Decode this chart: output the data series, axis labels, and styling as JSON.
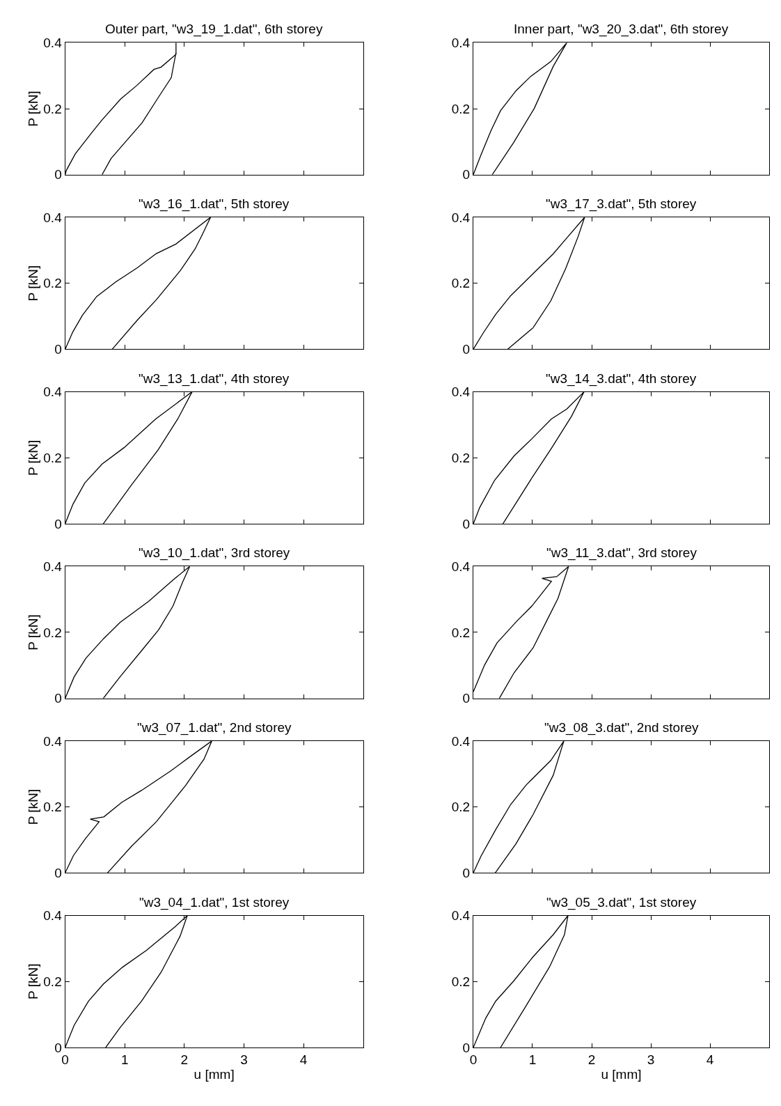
{
  "chart_data": [
    {
      "type": "line",
      "title": "Outer part, \"w3_19_1.dat\", 6th storey",
      "ylabel": "P [kN]",
      "color": "#000000",
      "xlim": [
        0,
        5
      ],
      "ylim": [
        0,
        0.4
      ],
      "xticks": [
        0,
        1,
        2,
        3,
        4
      ],
      "yticks": [
        0,
        0.2,
        0.4
      ],
      "tick_labels": "y",
      "x": [
        0,
        0.02,
        0.17,
        0.45,
        0.61,
        0.93,
        1.2,
        1.49,
        1.61,
        1.86,
        1.86,
        1.86,
        1.78,
        1.57,
        1.29,
        1.01,
        0.77,
        0.62
      ],
      "values": [
        0,
        0.013,
        0.063,
        0.128,
        0.164,
        0.229,
        0.27,
        0.319,
        0.326,
        0.365,
        0.4,
        0.37,
        0.294,
        0.236,
        0.157,
        0.099,
        0.049,
        0
      ]
    },
    {
      "type": "line",
      "title": "Inner part, \"w3_20_3.dat\", 6th storey",
      "color": "#000000",
      "xlim": [
        0,
        5
      ],
      "ylim": [
        0,
        0.4
      ],
      "xticks": [
        0,
        1,
        2,
        3,
        4
      ],
      "yticks": [
        0,
        0.2,
        0.4
      ],
      "tick_labels": "y",
      "x": [
        0,
        0.13,
        0.3,
        0.46,
        0.72,
        0.97,
        1.31,
        1.58,
        1.35,
        1.03,
        0.68,
        0.32
      ],
      "values": [
        0,
        0.06,
        0.134,
        0.194,
        0.254,
        0.298,
        0.343,
        0.4,
        0.328,
        0.201,
        0.097,
        0
      ]
    },
    {
      "type": "line",
      "title": "\"w3_16_1.dat\", 5th storey",
      "ylabel": "P [kN]",
      "color": "#000000",
      "xlim": [
        0,
        5
      ],
      "ylim": [
        0,
        0.4
      ],
      "xticks": [
        0,
        1,
        2,
        3,
        4
      ],
      "yticks": [
        0,
        0.2,
        0.4
      ],
      "tick_labels": "y",
      "x": [
        0,
        0.13,
        0.29,
        0.53,
        0.85,
        1.21,
        1.53,
        1.86,
        2.44,
        2.3,
        2.18,
        1.94,
        1.53,
        1.21,
        0.79
      ],
      "values": [
        0,
        0.053,
        0.103,
        0.16,
        0.204,
        0.247,
        0.29,
        0.319,
        0.4,
        0.347,
        0.304,
        0.24,
        0.15,
        0.088,
        0
      ]
    },
    {
      "type": "line",
      "title": "\"w3_17_3.dat\", 5th storey",
      "color": "#000000",
      "xlim": [
        0,
        5
      ],
      "ylim": [
        0,
        0.4
      ],
      "xticks": [
        0,
        1,
        2,
        3,
        4
      ],
      "yticks": [
        0,
        0.2,
        0.4
      ],
      "tick_labels": "y",
      "x": [
        0,
        0.17,
        0.38,
        0.63,
        0.97,
        1.35,
        1.56,
        1.88,
        1.77,
        1.56,
        1.31,
        1.01,
        0.58
      ],
      "values": [
        0,
        0.05,
        0.106,
        0.162,
        0.222,
        0.289,
        0.333,
        0.4,
        0.341,
        0.244,
        0.147,
        0.065,
        0
      ]
    },
    {
      "type": "line",
      "title": "\"w3_13_1.dat\", 4th storey",
      "ylabel": "P [kN]",
      "color": "#000000",
      "xlim": [
        0,
        5
      ],
      "ylim": [
        0,
        0.4
      ],
      "xticks": [
        0,
        1,
        2,
        3,
        4
      ],
      "yticks": [
        0,
        0.2,
        0.4
      ],
      "tick_labels": "y",
      "x": [
        0,
        0.13,
        0.33,
        0.62,
        0.99,
        1.52,
        2.13,
        1.89,
        1.56,
        1.11,
        0.64
      ],
      "values": [
        0,
        0.059,
        0.124,
        0.181,
        0.231,
        0.318,
        0.4,
        0.318,
        0.224,
        0.117,
        0
      ]
    },
    {
      "type": "line",
      "title": "\"w3_14_3.dat\", 4th storey",
      "color": "#000000",
      "xlim": [
        0,
        5
      ],
      "ylim": [
        0,
        0.4
      ],
      "xticks": [
        0,
        1,
        2,
        3,
        4
      ],
      "yticks": [
        0,
        0.2,
        0.4
      ],
      "tick_labels": "y",
      "x": [
        0,
        0.11,
        0.36,
        0.69,
        0.99,
        1.32,
        1.58,
        1.87,
        1.66,
        1.32,
        0.99,
        0.5
      ],
      "values": [
        0,
        0.05,
        0.132,
        0.206,
        0.258,
        0.318,
        0.348,
        0.4,
        0.326,
        0.229,
        0.139,
        0
      ]
    },
    {
      "type": "line",
      "title": "\"w3_10_1.dat\", 3rd storey",
      "ylabel": "P [kN]",
      "color": "#000000",
      "xlim": [
        0,
        5
      ],
      "ylim": [
        0,
        0.4
      ],
      "xticks": [
        0,
        1,
        2,
        3,
        4
      ],
      "yticks": [
        0,
        0.2,
        0.4
      ],
      "tick_labels": "y",
      "x": [
        0,
        0.15,
        0.35,
        0.64,
        0.92,
        1.4,
        1.81,
        2.09,
        1.97,
        1.81,
        1.57,
        1.28,
        0.92,
        0.64
      ],
      "values": [
        0,
        0.065,
        0.122,
        0.18,
        0.23,
        0.294,
        0.359,
        0.4,
        0.352,
        0.28,
        0.208,
        0.144,
        0.065,
        0
      ]
    },
    {
      "type": "line",
      "title": "\"w3_11_3.dat\", 3rd storey",
      "color": "#000000",
      "xlim": [
        0,
        5
      ],
      "ylim": [
        0,
        0.4
      ],
      "xticks": [
        0,
        1,
        2,
        3,
        4
      ],
      "yticks": [
        0,
        0.2,
        0.4
      ],
      "tick_labels": "y",
      "x": [
        0,
        0.19,
        0.4,
        0.74,
        0.99,
        1.32,
        1.16,
        1.41,
        1.61,
        1.43,
        1.24,
        1.01,
        0.69,
        0.44
      ],
      "values": [
        0.02,
        0.101,
        0.168,
        0.235,
        0.28,
        0.355,
        0.364,
        0.369,
        0.4,
        0.303,
        0.235,
        0.153,
        0.078,
        0
      ]
    },
    {
      "type": "line",
      "title": "\"w3_07_1.dat\", 2nd storey",
      "ylabel": "P [kN]",
      "color": "#000000",
      "xlim": [
        0,
        5
      ],
      "ylim": [
        0,
        0.4
      ],
      "xticks": [
        0,
        1,
        2,
        3,
        4
      ],
      "yticks": [
        0,
        0.2,
        0.4
      ],
      "tick_labels": "y",
      "x": [
        0,
        0.14,
        0.34,
        0.57,
        0.42,
        0.65,
        0.95,
        1.28,
        1.77,
        2.1,
        2.46,
        2.33,
        2.02,
        1.53,
        1.12,
        0.71
      ],
      "values": [
        0,
        0.053,
        0.104,
        0.155,
        0.163,
        0.17,
        0.214,
        0.25,
        0.309,
        0.353,
        0.4,
        0.345,
        0.265,
        0.155,
        0.082,
        0
      ]
    },
    {
      "type": "line",
      "title": "\"w3_08_3.dat\", 2nd storey",
      "color": "#000000",
      "xlim": [
        0,
        5
      ],
      "ylim": [
        0,
        0.4
      ],
      "xticks": [
        0,
        1,
        2,
        3,
        4
      ],
      "yticks": [
        0,
        0.2,
        0.4
      ],
      "tick_labels": "y",
      "x": [
        0,
        0.13,
        0.38,
        0.63,
        0.89,
        1.31,
        1.53,
        1.35,
        1.01,
        0.72,
        0.37
      ],
      "values": [
        0,
        0.051,
        0.132,
        0.207,
        0.266,
        0.341,
        0.4,
        0.296,
        0.177,
        0.088,
        0
      ]
    },
    {
      "type": "line",
      "title": "\"w3_04_1.dat\", 1st storey",
      "xlabel": "u [mm]",
      "ylabel": "P [kN]",
      "color": "#000000",
      "xlim": [
        0,
        5
      ],
      "ylim": [
        0,
        0.4
      ],
      "xticks": [
        0,
        1,
        2,
        3,
        4
      ],
      "yticks": [
        0,
        0.2,
        0.4
      ],
      "x": [
        0,
        0.15,
        0.39,
        0.64,
        0.96,
        1.36,
        1.85,
        2.05,
        1.93,
        1.61,
        1.28,
        0.92,
        0.68
      ],
      "values": [
        0,
        0.067,
        0.14,
        0.192,
        0.243,
        0.294,
        0.367,
        0.4,
        0.338,
        0.228,
        0.14,
        0.06,
        0
      ]
    },
    {
      "type": "line",
      "title": "\"w3_05_3.dat\", 1st storey",
      "xlabel": "u [mm]",
      "color": "#000000",
      "xlim": [
        0,
        5
      ],
      "ylim": [
        0,
        0.4
      ],
      "xticks": [
        0,
        1,
        2,
        3,
        4
      ],
      "yticks": [
        0,
        0.2,
        0.4
      ],
      "x": [
        0,
        0.21,
        0.38,
        0.68,
        1.01,
        1.35,
        1.6,
        1.54,
        1.29,
        0.89,
        0.46
      ],
      "values": [
        0,
        0.089,
        0.141,
        0.201,
        0.275,
        0.342,
        0.4,
        0.342,
        0.245,
        0.126,
        0
      ]
    }
  ]
}
